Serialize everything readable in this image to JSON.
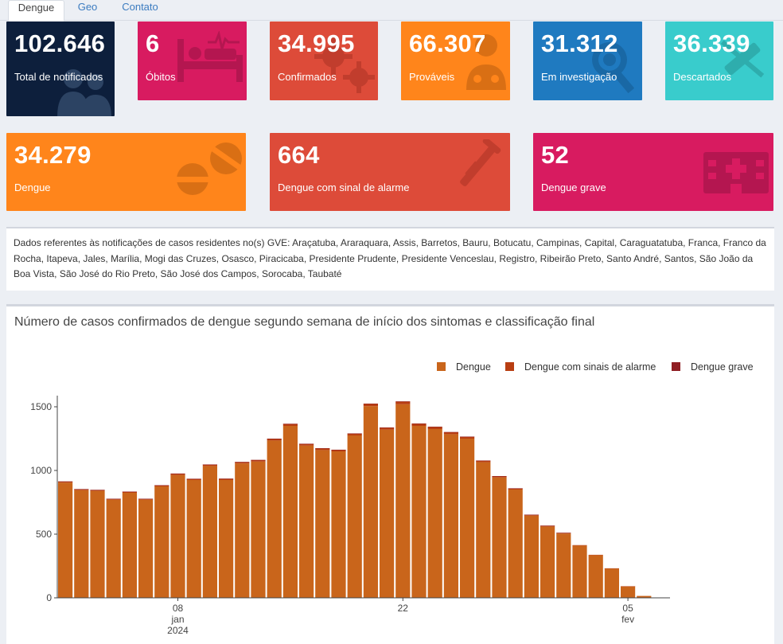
{
  "tabs": [
    "Dengue",
    "Geo",
    "Contato"
  ],
  "cards": [
    {
      "value": "102.646",
      "label": "Total de notificados",
      "color": "#0d1f3c",
      "icon": "people-icon"
    },
    {
      "value": "6",
      "label": "Óbitos",
      "color": "#d81b60",
      "icon": "hospital-bed-icon"
    },
    {
      "value": "34.995",
      "label": "Confirmados",
      "color": "#dd4b39",
      "icon": "virus-icon"
    },
    {
      "value": "66.307",
      "label": "Prováveis",
      "color": "#ff851b",
      "icon": "doctor-icon"
    },
    {
      "value": "31.312",
      "label": "Em investigação",
      "color": "#1f7ac0",
      "icon": "search-virus-icon"
    },
    {
      "value": "36.339",
      "label": "Descartados",
      "color": "#39cccc",
      "icon": "syringe-off-icon"
    },
    {
      "value": "34.279",
      "label": "Dengue",
      "color": "#ff851b",
      "icon": "pills-icon"
    },
    {
      "value": "664",
      "label": "Dengue com sinal de alarme",
      "color": "#dd4b39",
      "icon": "crutch-icon"
    },
    {
      "value": "52",
      "label": "Dengue grave",
      "color": "#d81b60",
      "icon": "hospital-icon"
    }
  ],
  "info_text": "Dados referentes às notificações de casos residentes no(s) GVE: Araçatuba, Araraquara, Assis, Barretos, Bauru, Botucatu, Campinas, Capital, Caraguatatuba, Franca, Franco da Rocha, Itapeva, Jales, Marília, Mogi das Cruzes, Osasco, Piracicaba, Presidente Prudente, Presidente Venceslau, Registro, Ribeirão Preto, Santo André, Santos, São João da Boa Vista, São José do Rio Preto, São José dos Campos, Sorocaba, Taubaté",
  "chart_data": {
    "type": "bar",
    "stacked": true,
    "title": "Número de casos confirmados de dengue segundo semana de início dos sintomas e classificação final",
    "xlabel": "",
    "ylabel": "",
    "ylim": [
      0,
      1600
    ],
    "yticks": [
      0,
      500,
      1000,
      1500
    ],
    "xticks": [
      {
        "label": "08",
        "sub": "jan",
        "sub2": "2024",
        "index": 7
      },
      {
        "label": "22",
        "sub": "",
        "sub2": "",
        "index": 21
      },
      {
        "label": "05",
        "sub": "fev",
        "sub2": "",
        "index": 35
      }
    ],
    "legend_position": "top-right",
    "series": [
      {
        "name": "Dengue",
        "color": "#c9651b",
        "values": [
          905,
          845,
          840,
          770,
          825,
          770,
          875,
          965,
          925,
          1035,
          925,
          1055,
          1070,
          1235,
          1350,
          1195,
          1160,
          1150,
          1275,
          1505,
          1320,
          1520,
          1350,
          1325,
          1285,
          1250,
          1065,
          945,
          850,
          645,
          560,
          505,
          410,
          335,
          230,
          90,
          15
        ]
      },
      {
        "name": "Dengue com sinais de alarme",
        "color": "#b83e12",
        "values": [
          8,
          8,
          7,
          7,
          8,
          7,
          8,
          10,
          9,
          11,
          10,
          11,
          12,
          13,
          15,
          13,
          13,
          12,
          14,
          18,
          16,
          20,
          17,
          17,
          15,
          14,
          12,
          10,
          9,
          7,
          6,
          5,
          4,
          3,
          2,
          1,
          0
        ]
      },
      {
        "name": "Dengue grave",
        "color": "#8f1d22",
        "values": [
          1,
          1,
          1,
          1,
          1,
          1,
          1,
          1,
          1,
          1,
          1,
          1,
          1,
          2,
          2,
          2,
          2,
          1,
          2,
          2,
          2,
          3,
          2,
          2,
          2,
          2,
          1,
          1,
          1,
          1,
          1,
          1,
          0,
          0,
          0,
          0,
          0
        ]
      }
    ]
  }
}
